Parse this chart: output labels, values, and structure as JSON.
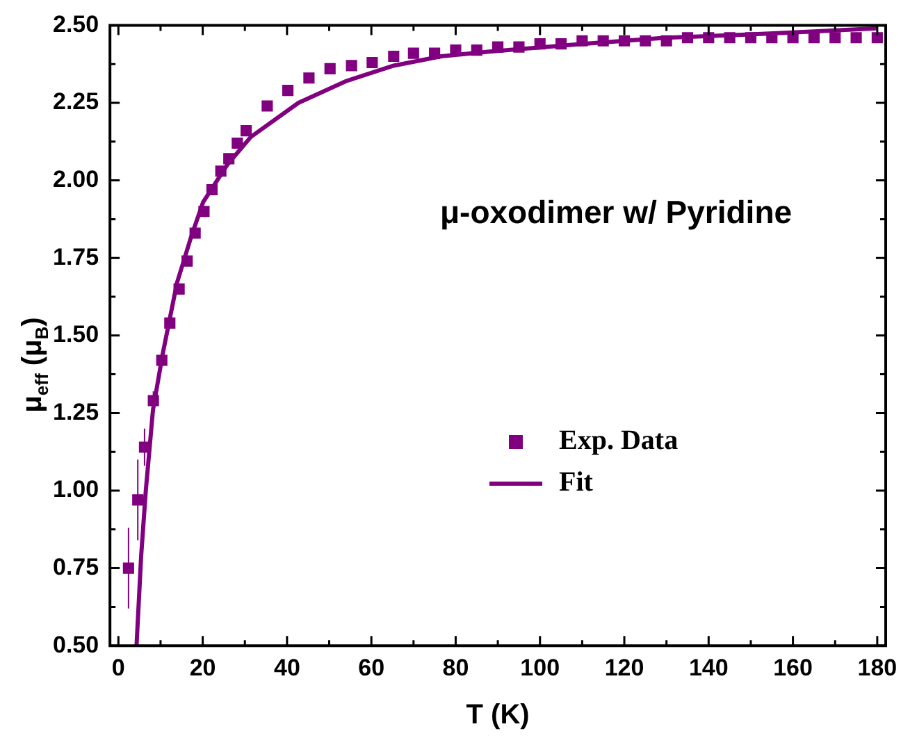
{
  "chart_data": {
    "type": "scatter",
    "xlabel": "T (K)",
    "ylabel": "μ$_{eff}$ (μ$_{B}$)",
    "annotations": [
      "μ-oxodimer w/ Pyridine"
    ],
    "xlim": [
      -2,
      182
    ],
    "ylim": [
      0.5,
      2.5
    ],
    "xticks": [
      0,
      {
        "value": 10,
        "label": null
      },
      20,
      {
        "value": 30,
        "label": null
      },
      40,
      {
        "value": 50,
        "label": null
      },
      60,
      {
        "value": 70,
        "label": null
      },
      80,
      {
        "value": 90,
        "label": null
      },
      100,
      {
        "value": 110,
        "label": null
      },
      120,
      {
        "value": 130,
        "label": null
      },
      140,
      {
        "value": 150,
        "label": null
      },
      160,
      {
        "value": 170,
        "label": null
      },
      180
    ],
    "yticks": [
      {
        "value": 0.5,
        "label": "0.50"
      },
      {
        "value": 0.625,
        "label": null
      },
      {
        "value": 0.75,
        "label": "0.75"
      },
      {
        "value": 0.875,
        "label": null
      },
      {
        "value": 1,
        "label": "1.00"
      },
      {
        "value": 1.125,
        "label": null
      },
      {
        "value": 1.25,
        "label": "1.25"
      },
      {
        "value": 1.375,
        "label": null
      },
      {
        "value": 1.5,
        "label": "1.50"
      },
      {
        "value": 1.625,
        "label": null
      },
      {
        "value": 1.75,
        "label": "1.75"
      },
      {
        "value": 1.875,
        "label": null
      },
      {
        "value": 2,
        "label": "2.00"
      },
      {
        "value": 2.125,
        "label": null
      },
      {
        "value": 2.25,
        "label": "2.25"
      },
      {
        "value": 2.375,
        "label": null
      },
      {
        "value": 2.5,
        "label": "2.50"
      }
    ],
    "grid": false,
    "legend": "right",
    "series": [
      {
        "name": "Exp. Data",
        "type": "scatter",
        "marker": "square",
        "color": "#800080",
        "x": [
          2.4,
          4.6,
          6.2,
          8.3,
          10.3,
          12.2,
          14.4,
          16.3,
          18.2,
          20.3,
          22.2,
          24.3,
          26.2,
          28.2,
          30.3,
          35.3,
          40.2,
          45.2,
          50.2,
          55.3,
          60.2,
          65.3,
          70,
          75,
          80,
          85,
          90,
          95,
          100,
          105,
          110,
          115,
          120,
          125,
          130,
          135,
          140,
          145,
          150,
          155,
          160,
          165,
          170,
          175,
          180
        ],
        "values": [
          0.75,
          0.97,
          1.14,
          1.29,
          1.42,
          1.54,
          1.65,
          1.74,
          1.83,
          1.9,
          1.97,
          2.03,
          2.07,
          2.12,
          2.16,
          2.24,
          2.29,
          2.33,
          2.36,
          2.37,
          2.38,
          2.4,
          2.41,
          2.41,
          2.42,
          2.42,
          2.43,
          2.43,
          2.44,
          2.44,
          2.45,
          2.45,
          2.45,
          2.45,
          2.45,
          2.46,
          2.46,
          2.46,
          2.46,
          2.46,
          2.46,
          2.46,
          2.46,
          2.46,
          2.46
        ],
        "errors": [
          0.13,
          0.13,
          0.06,
          0.03,
          null,
          null,
          null,
          null,
          null,
          null,
          null,
          null,
          null,
          null,
          null,
          null,
          null,
          null,
          null,
          null,
          null,
          null,
          null,
          null,
          null,
          null,
          null,
          null,
          null,
          null,
          null,
          null,
          null,
          null,
          null,
          null,
          null,
          null,
          null,
          null,
          null,
          null,
          null,
          null,
          null
        ]
      },
      {
        "name": "Fit",
        "type": "line",
        "marker": "none",
        "line_style": "solid",
        "color": "#800080",
        "x": [
          4.3,
          5.4,
          6.5,
          8.2,
          10.5,
          13.9,
          17.3,
          20.1,
          25.8,
          31.4,
          42.7,
          54,
          65.3,
          76.6,
          88,
          110,
          130,
          149,
          165,
          180
        ],
        "values": [
          0.5,
          0.79,
          1.0,
          1.26,
          1.44,
          1.67,
          1.82,
          1.93,
          2.05,
          2.14,
          2.25,
          2.32,
          2.37,
          2.4,
          2.415,
          2.44,
          2.46,
          2.47,
          2.48,
          2.49
        ]
      }
    ]
  }
}
